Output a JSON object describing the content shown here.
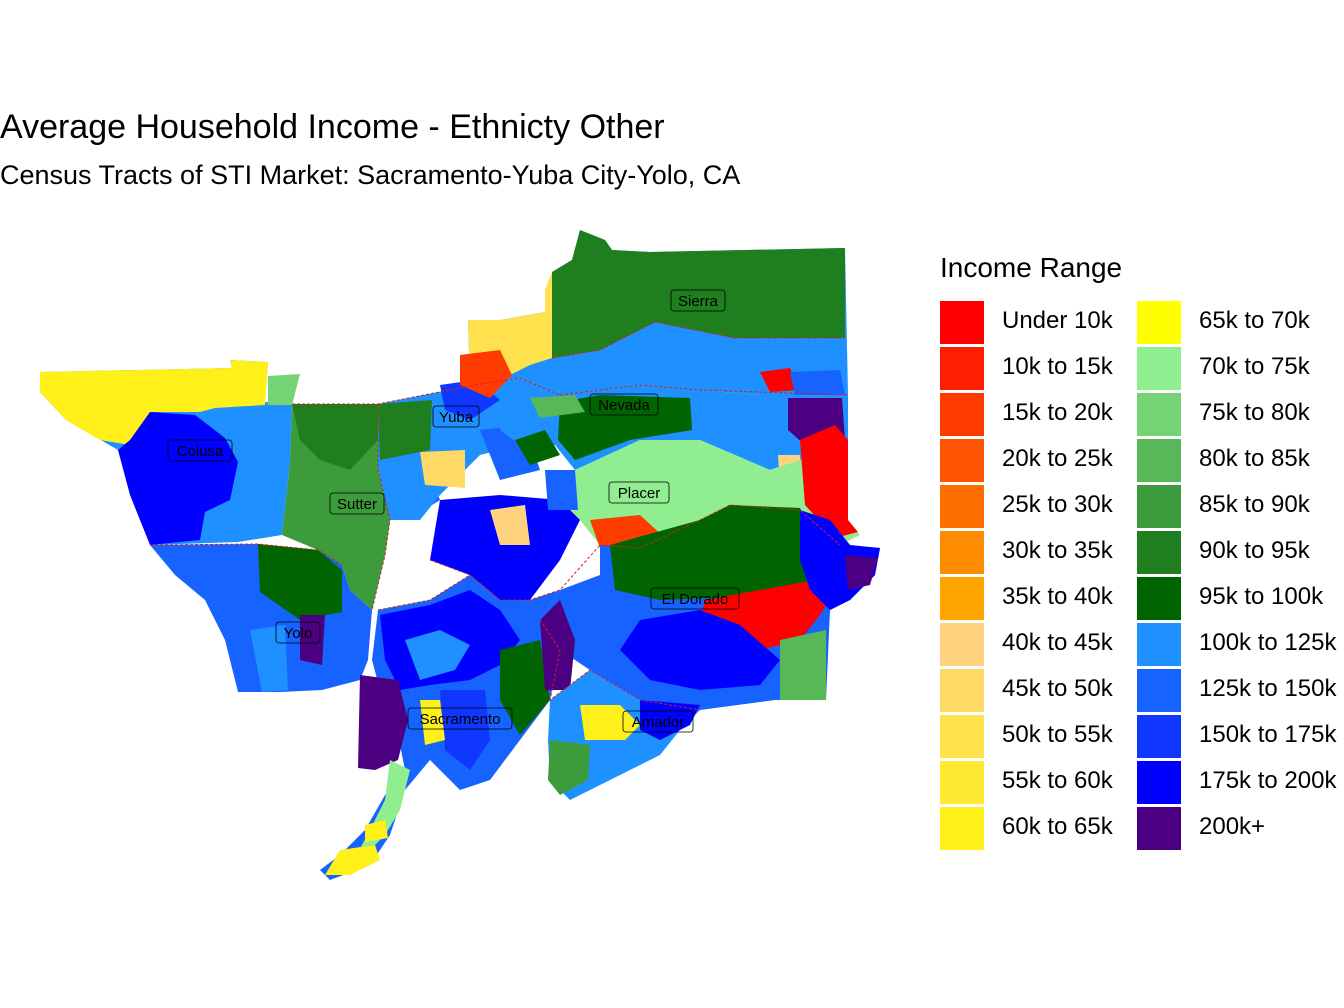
{
  "title": "Average Household Income - Ethnicty Other",
  "subtitle": "Census Tracts of STI Market: Sacramento-Yuba City-Yolo, CA",
  "legend": {
    "title": "Income Range",
    "items": [
      {
        "label": "Under 10k",
        "color": "#ff0000"
      },
      {
        "label": "10k to 15k",
        "color": "#ff1f00"
      },
      {
        "label": "15k to 20k",
        "color": "#ff3c00"
      },
      {
        "label": "20k to 25k",
        "color": "#ff5500"
      },
      {
        "label": "25k to 30k",
        "color": "#ff6e00"
      },
      {
        "label": "30k to 35k",
        "color": "#ff8c00"
      },
      {
        "label": "35k to 40k",
        "color": "#ffa500"
      },
      {
        "label": "40k to 45k",
        "color": "#ffd27f"
      },
      {
        "label": "45k to 50k",
        "color": "#ffd966"
      },
      {
        "label": "50k to 55k",
        "color": "#ffe14d"
      },
      {
        "label": "55k to 60k",
        "color": "#ffe933"
      },
      {
        "label": "60k to 65k",
        "color": "#fff01a"
      },
      {
        "label": "65k to 70k",
        "color": "#ffff00"
      },
      {
        "label": "70k to 75k",
        "color": "#90ee90"
      },
      {
        "label": "75k to 80k",
        "color": "#74d474"
      },
      {
        "label": "80k to 85k",
        "color": "#58b858"
      },
      {
        "label": "85k to 90k",
        "color": "#3c9c3c"
      },
      {
        "label": "90k to 95k",
        "color": "#1f7f1f"
      },
      {
        "label": "95k to 100k",
        "color": "#006400"
      },
      {
        "label": "100k to 125k",
        "color": "#1e90ff"
      },
      {
        "label": "125k to 150k",
        "color": "#1763ff"
      },
      {
        "label": "150k to 175k",
        "color": "#0f37ff"
      },
      {
        "label": "175k to 200k",
        "color": "#0000ff"
      },
      {
        "label": "200k+",
        "color": "#4b0082"
      }
    ]
  },
  "counties": [
    "Sierra",
    "Yuba",
    "Nevada",
    "Colusa",
    "Placer",
    "Sutter",
    "El Dorado",
    "Yolo",
    "Sacramento",
    "Amador"
  ]
}
